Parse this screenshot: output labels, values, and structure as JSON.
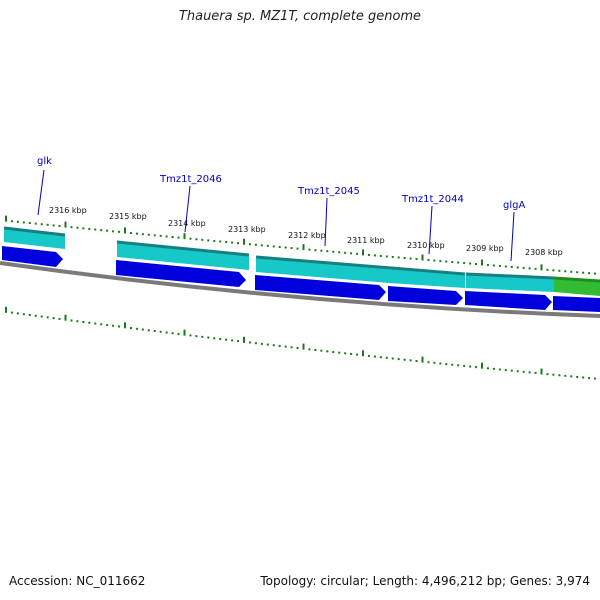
{
  "title": "Thauera sp. MZ1T, complete genome",
  "footer": {
    "accession": "Accession: NC_011662",
    "summary": "Topology: circular; Length: 4,496,212 bp; Genes: 3,974"
  },
  "scale_labels": [
    "2316 kbp",
    "2315 kbp",
    "2314 kbp",
    "2313 kbp",
    "2312 kbp",
    "2311 kbp",
    "2310 kbp",
    "2309 kbp",
    "2308 kbp"
  ],
  "gene_labels": [
    "glk",
    "Tmz1t_2046",
    "Tmz1t_2045",
    "Tmz1t_2044",
    "glgA"
  ],
  "colors": {
    "backbone": "#7a7a7a",
    "tick": "#1a7a1a",
    "cds_outer": "#16c8c8",
    "cds_dark": "#168080",
    "gene": "#0000dd",
    "rna": "#33bb33",
    "label_line": "#0000c0"
  }
}
